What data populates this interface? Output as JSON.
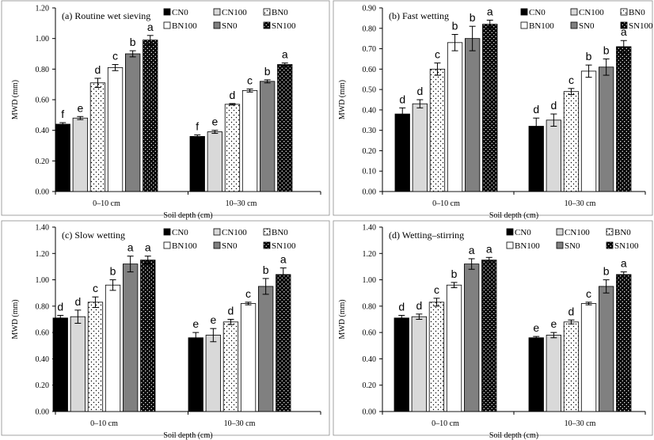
{
  "chart_data": [
    {
      "type": "bar",
      "title": "(a) Routine wet sieving",
      "xlabel": "Soil depth (cm)",
      "ylabel": "MWD (mm)",
      "ylim": [
        0,
        1.2
      ],
      "yticks": [
        "0.00",
        "0.20",
        "0.40",
        "0.60",
        "0.80",
        "1.00",
        "1.20"
      ],
      "categories": [
        "0–10 cm",
        "10–30 cm"
      ],
      "series": [
        {
          "name": "CN0",
          "values": [
            0.44,
            0.36
          ],
          "errors": [
            0.01,
            0.01
          ],
          "letters": [
            "f",
            "f"
          ]
        },
        {
          "name": "CN100",
          "values": [
            0.48,
            0.39
          ],
          "errors": [
            0.01,
            0.01
          ],
          "letters": [
            "e",
            "e"
          ]
        },
        {
          "name": "BN0",
          "values": [
            0.71,
            0.57
          ],
          "errors": [
            0.03,
            0.005
          ],
          "letters": [
            "d",
            "d"
          ]
        },
        {
          "name": "BN100",
          "values": [
            0.81,
            0.66
          ],
          "errors": [
            0.02,
            0.01
          ],
          "letters": [
            "c",
            "c"
          ]
        },
        {
          "name": "SN0",
          "values": [
            0.9,
            0.72
          ],
          "errors": [
            0.02,
            0.01
          ],
          "letters": [
            "b",
            "b"
          ]
        },
        {
          "name": "SN100",
          "values": [
            0.99,
            0.83
          ],
          "errors": [
            0.03,
            0.01
          ],
          "letters": [
            "a",
            "a"
          ]
        }
      ]
    },
    {
      "type": "bar",
      "title": "(b) Fast wetting",
      "xlabel": "Soil depth (cm)",
      "ylabel": "MWD (mm)",
      "ylim": [
        0,
        0.9
      ],
      "yticks": [
        "0.00",
        "0.10",
        "0.20",
        "0.30",
        "0.40",
        "0.50",
        "0.60",
        "0.70",
        "0.80",
        "0.90"
      ],
      "categories": [
        "0–10 cm",
        "10–30 cm"
      ],
      "series": [
        {
          "name": "CN0",
          "values": [
            0.38,
            0.32
          ],
          "errors": [
            0.03,
            0.04
          ],
          "letters": [
            "d",
            "d"
          ]
        },
        {
          "name": "CN100",
          "values": [
            0.43,
            0.35
          ],
          "errors": [
            0.02,
            0.03
          ],
          "letters": [
            "d",
            "d"
          ]
        },
        {
          "name": "BN0",
          "values": [
            0.6,
            0.49
          ],
          "errors": [
            0.03,
            0.015
          ],
          "letters": [
            "c",
            "c"
          ]
        },
        {
          "name": "BN100",
          "values": [
            0.73,
            0.59
          ],
          "errors": [
            0.04,
            0.03
          ],
          "letters": [
            "b",
            "b"
          ]
        },
        {
          "name": "SN0",
          "values": [
            0.75,
            0.61
          ],
          "errors": [
            0.06,
            0.04
          ],
          "letters": [
            "b",
            "b"
          ]
        },
        {
          "name": "SN100",
          "values": [
            0.82,
            0.71
          ],
          "errors": [
            0.02,
            0.03
          ],
          "letters": [
            "a",
            "a"
          ]
        }
      ]
    },
    {
      "type": "bar",
      "title": "(c) Slow wetting",
      "xlabel": "Soil depth (cm)",
      "ylabel": "MWD (mm)",
      "ylim": [
        0,
        1.4
      ],
      "yticks": [
        "0.00",
        "0.20",
        "0.40",
        "0.60",
        "0.80",
        "1.00",
        "1.20",
        "1.40"
      ],
      "categories": [
        "0–10 cm",
        "10–30 cm"
      ],
      "series": [
        {
          "name": "CN0",
          "values": [
            0.71,
            0.56
          ],
          "errors": [
            0.02,
            0.04
          ],
          "letters": [
            "d",
            "e"
          ]
        },
        {
          "name": "CN100",
          "values": [
            0.72,
            0.58
          ],
          "errors": [
            0.05,
            0.05
          ],
          "letters": [
            "d",
            "e"
          ]
        },
        {
          "name": "BN0",
          "values": [
            0.83,
            0.68
          ],
          "errors": [
            0.04,
            0.02
          ],
          "letters": [
            "c",
            "d"
          ]
        },
        {
          "name": "BN100",
          "values": [
            0.96,
            0.82
          ],
          "errors": [
            0.04,
            0.01
          ],
          "letters": [
            "b",
            "c"
          ]
        },
        {
          "name": "SN0",
          "values": [
            1.12,
            0.95
          ],
          "errors": [
            0.06,
            0.06
          ],
          "letters": [
            "a",
            "b"
          ]
        },
        {
          "name": "SN100",
          "values": [
            1.15,
            1.04
          ],
          "errors": [
            0.03,
            0.05
          ],
          "letters": [
            "a",
            "a"
          ]
        }
      ]
    },
    {
      "type": "bar",
      "title": "(d) Wetting–stirring",
      "xlabel": "Soil depth (cm)",
      "ylabel": "MWD (mm)",
      "ylim": [
        0,
        1.4
      ],
      "yticks": [
        "0.00",
        "0.20",
        "0.40",
        "0.60",
        "0.80",
        "1.00",
        "1.20",
        "1.40"
      ],
      "categories": [
        "0–10 cm",
        "10–30 cm"
      ],
      "series": [
        {
          "name": "CN0",
          "values": [
            0.71,
            0.56
          ],
          "errors": [
            0.02,
            0.01
          ],
          "letters": [
            "d",
            "e"
          ]
        },
        {
          "name": "CN100",
          "values": [
            0.72,
            0.58
          ],
          "errors": [
            0.02,
            0.02
          ],
          "letters": [
            "d",
            "e"
          ]
        },
        {
          "name": "BN0",
          "values": [
            0.83,
            0.68
          ],
          "errors": [
            0.03,
            0.015
          ],
          "letters": [
            "c",
            "d"
          ]
        },
        {
          "name": "BN100",
          "values": [
            0.96,
            0.82
          ],
          "errors": [
            0.02,
            0.01
          ],
          "letters": [
            "b",
            "c"
          ]
        },
        {
          "name": "SN0",
          "values": [
            1.12,
            0.95
          ],
          "errors": [
            0.04,
            0.05
          ],
          "letters": [
            "a",
            "b"
          ]
        },
        {
          "name": "SN100",
          "values": [
            1.15,
            1.04
          ],
          "errors": [
            0.02,
            0.02
          ],
          "letters": [
            "a",
            "a"
          ]
        }
      ]
    }
  ]
}
